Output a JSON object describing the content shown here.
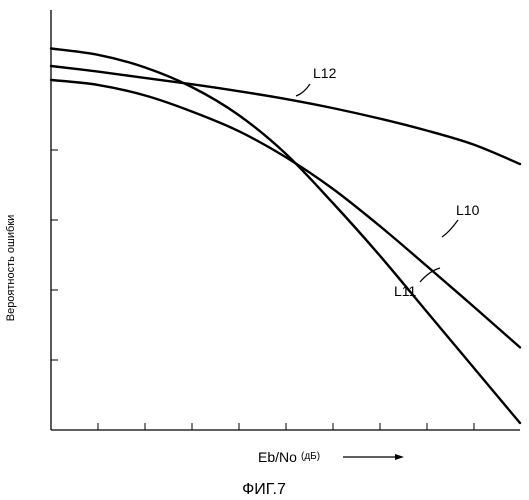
{
  "chart_data": {
    "type": "line",
    "title": "",
    "xlabel": "Eb/No",
    "xunit": "(дБ)",
    "ylabel": "Вероятность ошибки",
    "caption": "ФИГ.7",
    "xlim": [
      0,
      10
    ],
    "ylim": [
      0,
      6
    ],
    "x_ticks": 10,
    "y_ticks": 6,
    "grid": false,
    "series": [
      {
        "name": "L10",
        "x": [
          0,
          1,
          2,
          3,
          4,
          5,
          6,
          7,
          8,
          9,
          10
        ],
        "y": [
          5.0,
          4.93,
          4.78,
          4.55,
          4.27,
          3.9,
          3.45,
          2.92,
          2.35,
          1.77,
          1.18
        ]
      },
      {
        "name": "L11",
        "x": [
          0,
          1,
          2,
          3,
          4,
          5,
          6,
          7,
          8,
          9,
          10
        ],
        "y": [
          5.45,
          5.36,
          5.18,
          4.9,
          4.5,
          3.95,
          3.25,
          2.5,
          1.7,
          0.9,
          0.1
        ]
      },
      {
        "name": "L12",
        "x": [
          0,
          1,
          2,
          3,
          4,
          5,
          6,
          7,
          8,
          9,
          10
        ],
        "y": [
          5.2,
          5.12,
          5.03,
          4.94,
          4.84,
          4.73,
          4.6,
          4.45,
          4.28,
          4.08,
          3.8
        ]
      }
    ]
  }
}
